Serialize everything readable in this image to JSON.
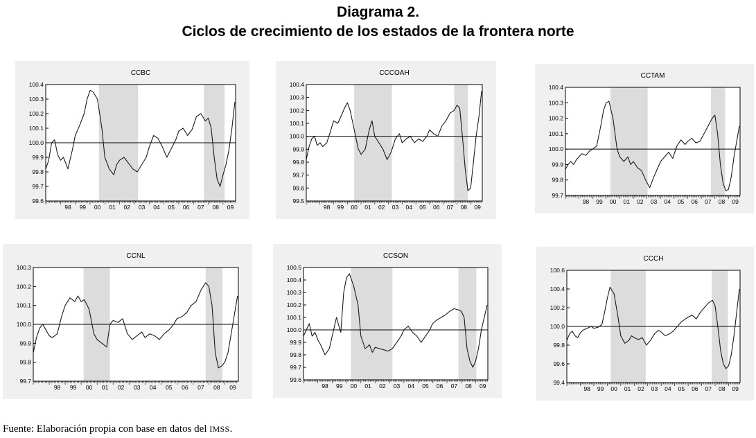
{
  "figure": {
    "title_line1": "Diagrama 2.",
    "title_line2": "Ciclos de crecimiento de los estados de la frontera norte",
    "source_prefix": "Fuente: Elaboración propia con base en datos del ",
    "source_org": "IMSS",
    "source_suffix": "."
  },
  "chart_data": [
    {
      "type": "line",
      "title": "CCBC",
      "xlabel": "",
      "ylabel": "",
      "x_ticks": [
        "98",
        "99",
        "00",
        "01",
        "02",
        "03",
        "04",
        "05",
        "06",
        "07",
        "08",
        "09"
      ],
      "ylim": [
        99.6,
        100.4
      ],
      "y_ticks": [
        "99.6",
        "99.7",
        "99.8",
        "99.9",
        "100.0",
        "100.1",
        "100.2",
        "100.3",
        "100.4"
      ],
      "baseline": 100.0,
      "shaded_periods": [
        [
          2000.6,
          2003.25
        ],
        [
          2007.7,
          2009.1
        ]
      ],
      "series": [
        {
          "x": [
            1997.0,
            1997.2,
            1997.4,
            1997.6,
            1997.8,
            1998.0,
            1998.2,
            1998.5,
            1998.8,
            1999.0,
            1999.3,
            1999.6,
            1999.8,
            2000.0,
            2000.2,
            2000.5,
            2000.8,
            2001.0,
            2001.3,
            2001.6,
            2001.8,
            2002.0,
            2002.3,
            2002.6,
            2002.9,
            2003.2,
            2003.5,
            2003.8,
            2004.0,
            2004.3,
            2004.6,
            2004.9,
            2005.2,
            2005.5,
            2005.8,
            2006.0,
            2006.3,
            2006.6,
            2006.9,
            2007.2,
            2007.5,
            2007.8,
            2008.0,
            2008.2,
            2008.4,
            2008.6,
            2008.8,
            2009.0,
            2009.2,
            2009.4,
            2009.6,
            2009.8
          ],
          "y": [
            99.82,
            99.88,
            100.0,
            100.02,
            99.92,
            99.88,
            99.9,
            99.82,
            99.95,
            100.05,
            100.12,
            100.2,
            100.3,
            100.36,
            100.35,
            100.3,
            100.1,
            99.9,
            99.82,
            99.78,
            99.85,
            99.88,
            99.9,
            99.86,
            99.82,
            99.8,
            99.85,
            99.9,
            99.97,
            100.05,
            100.03,
            99.97,
            99.9,
            99.96,
            100.02,
            100.08,
            100.1,
            100.05,
            100.09,
            100.18,
            100.2,
            100.15,
            100.17,
            100.1,
            99.9,
            99.75,
            99.7,
            99.78,
            99.85,
            99.95,
            100.1,
            100.28
          ]
        }
      ]
    },
    {
      "type": "line",
      "title": "CCCOAH",
      "xlabel": "",
      "ylabel": "",
      "x_ticks": [
        "98",
        "99",
        "00",
        "01",
        "02",
        "03",
        "04",
        "05",
        "06",
        "07",
        "08",
        "09"
      ],
      "ylim": [
        99.5,
        100.4
      ],
      "y_ticks": [
        "99.5",
        "99.6",
        "99.7",
        "99.8",
        "99.9",
        "100.0",
        "100.1",
        "100.2",
        "100.3",
        "100.4"
      ],
      "baseline": 100.0,
      "shaded_periods": [
        [
          2000.5,
          2003.25
        ],
        [
          2007.8,
          2008.8
        ]
      ],
      "series": [
        {
          "x": [
            1997.0,
            1997.2,
            1997.4,
            1997.6,
            1997.8,
            1998.0,
            1998.2,
            1998.5,
            1998.8,
            1999.0,
            1999.3,
            1999.6,
            1999.8,
            2000.0,
            2000.2,
            2000.5,
            2000.8,
            2001.0,
            2001.3,
            2001.6,
            2001.8,
            2002.0,
            2002.3,
            2002.6,
            2002.9,
            2003.2,
            2003.5,
            2003.8,
            2004.0,
            2004.3,
            2004.6,
            2004.9,
            2005.2,
            2005.5,
            2005.8,
            2006.0,
            2006.3,
            2006.6,
            2006.9,
            2007.2,
            2007.5,
            2007.8,
            2008.0,
            2008.2,
            2008.4,
            2008.6,
            2008.8,
            2009.0,
            2009.2,
            2009.4,
            2009.6,
            2009.8
          ],
          "y": [
            99.82,
            99.92,
            99.98,
            100.0,
            99.93,
            99.95,
            99.92,
            99.95,
            100.05,
            100.12,
            100.1,
            100.17,
            100.22,
            100.26,
            100.2,
            100.05,
            99.9,
            99.86,
            99.9,
            100.05,
            100.12,
            100.0,
            99.95,
            99.9,
            99.82,
            99.88,
            99.98,
            100.02,
            99.95,
            99.98,
            100.0,
            99.95,
            99.98,
            99.96,
            100.0,
            100.05,
            100.02,
            100.0,
            100.08,
            100.12,
            100.18,
            100.2,
            100.24,
            100.22,
            100.0,
            99.75,
            99.58,
            99.6,
            99.8,
            100.0,
            100.15,
            100.35
          ]
        }
      ]
    },
    {
      "type": "line",
      "title": "CCTAM",
      "xlabel": "",
      "ylabel": "",
      "x_ticks": [
        "98",
        "99",
        "00",
        "01",
        "02",
        "03",
        "04",
        "05",
        "06",
        "07",
        "08",
        "09"
      ],
      "ylim": [
        99.7,
        100.4
      ],
      "y_ticks": [
        "99.7",
        "99.8",
        "99.9",
        "100.0",
        "100.1",
        "100.2",
        "100.3",
        "100.4"
      ],
      "baseline": 100.0,
      "shaded_periods": [
        [
          2000.3,
          2003.05
        ],
        [
          2007.7,
          2008.75
        ]
      ],
      "series": [
        {
          "x": [
            1997.0,
            1997.2,
            1997.4,
            1997.6,
            1997.8,
            1998.0,
            1998.2,
            1998.5,
            1998.8,
            1999.0,
            1999.3,
            1999.6,
            1999.8,
            2000.0,
            2000.2,
            2000.5,
            2000.8,
            2001.0,
            2001.3,
            2001.6,
            2001.8,
            2002.0,
            2002.3,
            2002.6,
            2002.9,
            2003.2,
            2003.5,
            2003.8,
            2004.0,
            2004.3,
            2004.6,
            2004.9,
            2005.2,
            2005.5,
            2005.8,
            2006.0,
            2006.3,
            2006.6,
            2006.9,
            2007.2,
            2007.5,
            2007.8,
            2008.0,
            2008.2,
            2008.4,
            2008.6,
            2008.8,
            2009.0,
            2009.2,
            2009.4,
            2009.6,
            2009.8
          ],
          "y": [
            99.87,
            99.9,
            99.92,
            99.9,
            99.93,
            99.95,
            99.97,
            99.96,
            99.99,
            100.0,
            100.02,
            100.15,
            100.25,
            100.3,
            100.31,
            100.2,
            100.0,
            99.95,
            99.92,
            99.95,
            99.9,
            99.92,
            99.88,
            99.86,
            99.8,
            99.75,
            99.82,
            99.88,
            99.92,
            99.95,
            99.98,
            99.94,
            100.02,
            100.06,
            100.03,
            100.05,
            100.07,
            100.04,
            100.05,
            100.1,
            100.15,
            100.2,
            100.22,
            100.1,
            99.9,
            99.78,
            99.73,
            99.74,
            99.82,
            99.95,
            100.05,
            100.15
          ]
        }
      ]
    },
    {
      "type": "line",
      "title": "CCNL",
      "xlabel": "",
      "ylabel": "",
      "x_ticks": [
        "98",
        "99",
        "00",
        "01",
        "02",
        "03",
        "04",
        "05",
        "06",
        "07",
        "08",
        "09"
      ],
      "ylim": [
        99.7,
        100.3
      ],
      "y_ticks": [
        "99.7",
        "99.8",
        "99.9",
        "100.0",
        "100.1",
        "100.2",
        "100.3"
      ],
      "baseline": 100.0,
      "shaded_periods": [
        [
          2000.15,
          2001.8
        ],
        [
          2007.8,
          2008.85
        ]
      ],
      "series": [
        {
          "x": [
            1997.0,
            1997.2,
            1997.4,
            1997.6,
            1997.8,
            1998.0,
            1998.2,
            1998.5,
            1998.8,
            1999.0,
            1999.3,
            1999.6,
            1999.8,
            2000.0,
            2000.2,
            2000.5,
            2000.8,
            2001.0,
            2001.3,
            2001.6,
            2001.8,
            2002.0,
            2002.3,
            2002.6,
            2002.9,
            2003.2,
            2003.5,
            2003.8,
            2004.0,
            2004.3,
            2004.6,
            2004.9,
            2005.2,
            2005.5,
            2005.8,
            2006.0,
            2006.3,
            2006.6,
            2006.9,
            2007.2,
            2007.5,
            2007.8,
            2008.0,
            2008.2,
            2008.4,
            2008.6,
            2008.8,
            2009.0,
            2009.2,
            2009.4,
            2009.6,
            2009.8
          ],
          "y": [
            99.85,
            99.93,
            99.98,
            100.0,
            99.97,
            99.94,
            99.93,
            99.95,
            100.05,
            100.1,
            100.14,
            100.12,
            100.15,
            100.12,
            100.13,
            100.08,
            99.95,
            99.92,
            99.9,
            99.88,
            100.0,
            100.02,
            100.01,
            100.03,
            99.95,
            99.92,
            99.94,
            99.96,
            99.93,
            99.95,
            99.94,
            99.92,
            99.95,
            99.97,
            100.0,
            100.03,
            100.04,
            100.06,
            100.1,
            100.12,
            100.18,
            100.22,
            100.2,
            100.1,
            99.85,
            99.77,
            99.78,
            99.8,
            99.85,
            99.95,
            100.05,
            100.15
          ]
        }
      ]
    },
    {
      "type": "line",
      "title": "CCSON",
      "xlabel": "",
      "ylabel": "",
      "x_ticks": [
        "98",
        "99",
        "00",
        "01",
        "02",
        "03",
        "04",
        "05",
        "06",
        "07",
        "08",
        "09"
      ],
      "ylim": [
        99.6,
        100.5
      ],
      "y_ticks": [
        "99.6",
        "99.7",
        "99.8",
        "99.9",
        "100.0",
        "100.1",
        "100.2",
        "100.3",
        "100.4",
        "100.5"
      ],
      "baseline": 100.0,
      "shaded_periods": [
        [
          2000.3,
          2003.2
        ],
        [
          2007.8,
          2009.05
        ]
      ],
      "series": [
        {
          "x": [
            1997.0,
            1997.2,
            1997.4,
            1997.6,
            1997.8,
            1998.0,
            1998.2,
            1998.5,
            1998.8,
            1999.0,
            1999.3,
            1999.6,
            1999.8,
            2000.0,
            2000.2,
            2000.5,
            2000.8,
            2001.0,
            2001.3,
            2001.6,
            2001.8,
            2002.0,
            2002.3,
            2002.6,
            2002.9,
            2003.2,
            2003.5,
            2003.8,
            2004.0,
            2004.3,
            2004.6,
            2004.9,
            2005.2,
            2005.5,
            2005.8,
            2006.0,
            2006.3,
            2006.6,
            2006.9,
            2007.2,
            2007.5,
            2007.8,
            2008.0,
            2008.2,
            2008.4,
            2008.6,
            2008.8,
            2009.0,
            2009.2,
            2009.4,
            2009.6,
            2009.8
          ],
          "y": [
            99.95,
            100.0,
            100.05,
            99.95,
            99.98,
            99.92,
            99.88,
            99.8,
            99.85,
            99.95,
            100.1,
            99.98,
            100.3,
            100.42,
            100.45,
            100.35,
            100.2,
            99.95,
            99.85,
            99.88,
            99.82,
            99.86,
            99.85,
            99.84,
            99.83,
            99.85,
            99.9,
            99.95,
            100.0,
            100.03,
            99.98,
            99.95,
            99.9,
            99.95,
            100.0,
            100.05,
            100.08,
            100.1,
            100.12,
            100.15,
            100.17,
            100.16,
            100.15,
            100.1,
            99.85,
            99.75,
            99.7,
            99.75,
            99.85,
            100.0,
            100.1,
            100.2
          ]
        }
      ]
    },
    {
      "type": "line",
      "title": "CCCH",
      "xlabel": "",
      "ylabel": "",
      "x_ticks": [
        "98",
        "99",
        "00",
        "01",
        "02",
        "03",
        "04",
        "05",
        "06",
        "07",
        "08",
        "09"
      ],
      "ylim": [
        99.4,
        100.6
      ],
      "y_ticks": [
        "99.4",
        "99.6",
        "99.8",
        "100.0",
        "100.2",
        "100.4",
        "100.6"
      ],
      "baseline": 100.0,
      "shaded_periods": [
        [
          2000.25,
          2002.85
        ],
        [
          2007.75,
          2008.95
        ]
      ],
      "series": [
        {
          "x": [
            1997.0,
            1997.2,
            1997.4,
            1997.6,
            1997.8,
            1998.0,
            1998.2,
            1998.5,
            1998.8,
            1999.0,
            1999.3,
            1999.6,
            1999.8,
            2000.0,
            2000.2,
            2000.5,
            2000.8,
            2001.0,
            2001.3,
            2001.6,
            2001.8,
            2002.0,
            2002.3,
            2002.6,
            2002.9,
            2003.2,
            2003.5,
            2003.8,
            2004.0,
            2004.3,
            2004.6,
            2004.9,
            2005.2,
            2005.5,
            2005.8,
            2006.0,
            2006.3,
            2006.6,
            2006.9,
            2007.2,
            2007.5,
            2007.8,
            2008.0,
            2008.2,
            2008.4,
            2008.6,
            2008.8,
            2009.0,
            2009.2,
            2009.4,
            2009.6,
            2009.8
          ],
          "y": [
            99.85,
            99.92,
            99.95,
            99.9,
            99.88,
            99.93,
            99.96,
            99.98,
            100.0,
            99.98,
            99.99,
            100.02,
            100.15,
            100.3,
            100.42,
            100.35,
            100.1,
            99.9,
            99.82,
            99.85,
            99.9,
            99.88,
            99.86,
            99.88,
            99.8,
            99.85,
            99.92,
            99.96,
            99.94,
            99.9,
            99.92,
            99.95,
            100.0,
            100.05,
            100.08,
            100.1,
            100.12,
            100.08,
            100.15,
            100.2,
            100.25,
            100.28,
            100.22,
            100.0,
            99.75,
            99.6,
            99.55,
            99.58,
            99.7,
            99.9,
            100.15,
            100.4
          ]
        }
      ]
    }
  ]
}
